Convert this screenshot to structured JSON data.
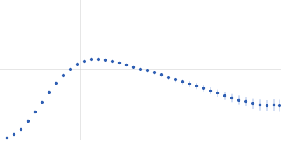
{
  "chart_data": {
    "type": "scatter",
    "x": [
      10,
      20,
      30,
      40,
      50,
      60,
      70,
      80,
      90,
      100,
      110,
      120,
      130,
      140,
      150,
      160,
      170,
      180,
      190,
      200,
      210,
      220,
      230,
      240,
      250,
      260,
      270,
      280,
      290,
      300,
      310,
      320,
      330,
      340,
      350,
      360,
      370,
      380,
      390,
      398
    ],
    "values": [
      3,
      8,
      15,
      27,
      40,
      54,
      68,
      81,
      92,
      101,
      108,
      112,
      115,
      115,
      114,
      112,
      110,
      107,
      104,
      101,
      99,
      96,
      93,
      89,
      86,
      83,
      80,
      77,
      74,
      70,
      67,
      63,
      60,
      57,
      55,
      52,
      50,
      49,
      50,
      49
    ],
    "errors": [
      0.5,
      0.5,
      0.5,
      0.5,
      0.5,
      0.5,
      0.6,
      0.6,
      0.7,
      0.7,
      0.8,
      0.8,
      0.9,
      1,
      1,
      1.2,
      1.3,
      1.5,
      1.7,
      2,
      2.2,
      2.5,
      2.8,
      3,
      3.3,
      3.6,
      4,
      4.3,
      4.6,
      5,
      5.4,
      5.8,
      6.2,
      6.6,
      7,
      7.4,
      7.8,
      8,
      8.2,
      8.5
    ],
    "color": "#2f5fb3",
    "error_color": "#a9bfe8",
    "xlim": [
      0,
      400
    ],
    "ylim": [
      0,
      200
    ],
    "xgrid": [
      115
    ],
    "ygrid": [
      101
    ],
    "grid_color": "#cccccc"
  }
}
